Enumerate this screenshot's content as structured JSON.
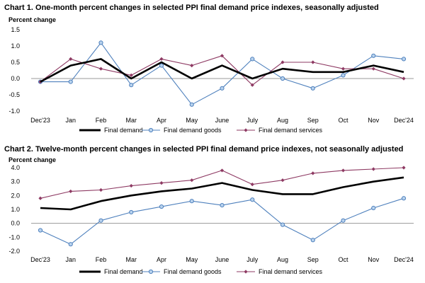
{
  "colors": {
    "final_demand": "#000000",
    "final_demand_goods": "#4f81bd",
    "final_demand_services": "#8e3a63",
    "goods_marker_fill": "#b9d3ee",
    "zero_line": "#999999"
  },
  "chart_data": [
    {
      "type": "line",
      "title": "Chart 1. One-month percent changes in selected PPI final demand price indexes, seasonally adjusted",
      "ylabel": "Percent change",
      "xlabel": "",
      "categories": [
        "Dec'23",
        "Jan",
        "Feb",
        "Mar",
        "Apr",
        "May",
        "June",
        "July",
        "Aug",
        "Sep",
        "Oct",
        "Nov",
        "Dec'24"
      ],
      "ylim": [
        -1.0,
        1.5
      ],
      "yticks": [
        "-1.0",
        "-0.5",
        "0.0",
        "0.5",
        "1.0",
        "1.5"
      ],
      "ytick_values": [
        -1.0,
        -0.5,
        0.0,
        0.5,
        1.0,
        1.5
      ],
      "grid": false,
      "legend_position": "bottom",
      "series": [
        {
          "name": "Final demand",
          "values": [
            -0.1,
            0.4,
            0.6,
            0.0,
            0.5,
            0.0,
            0.4,
            0.0,
            0.3,
            0.2,
            0.2,
            0.4,
            0.2
          ]
        },
        {
          "name": "Final demand goods",
          "values": [
            -0.1,
            -0.1,
            1.1,
            -0.2,
            0.4,
            -0.8,
            -0.3,
            0.6,
            0.0,
            -0.3,
            0.1,
            0.7,
            0.6
          ]
        },
        {
          "name": "Final demand services",
          "values": [
            -0.1,
            0.6,
            0.3,
            0.1,
            0.6,
            0.4,
            0.7,
            -0.2,
            0.5,
            0.5,
            0.3,
            0.3,
            0.0
          ]
        }
      ]
    },
    {
      "type": "line",
      "title": "Chart 2. Twelve-month percent changes in selected PPI final demand price indexes, not seasonally adjusted",
      "ylabel": "Percent change",
      "xlabel": "",
      "categories": [
        "Dec'23",
        "Jan",
        "Feb",
        "Mar",
        "Apr",
        "May",
        "June",
        "July",
        "Aug",
        "Sep",
        "Oct",
        "Nov",
        "Dec'24"
      ],
      "ylim": [
        -2.0,
        4.0
      ],
      "yticks": [
        "-2.0",
        "-1.0",
        "0.0",
        "1.0",
        "2.0",
        "3.0",
        "4.0"
      ],
      "ytick_values": [
        -2.0,
        -1.0,
        0.0,
        1.0,
        2.0,
        3.0,
        4.0
      ],
      "grid": false,
      "legend_position": "bottom",
      "series": [
        {
          "name": "Final demand",
          "values": [
            1.1,
            1.0,
            1.6,
            2.0,
            2.3,
            2.5,
            2.9,
            2.4,
            2.1,
            2.1,
            2.6,
            3.0,
            3.3
          ]
        },
        {
          "name": "Final demand goods",
          "values": [
            -0.5,
            -1.5,
            0.2,
            0.8,
            1.2,
            1.6,
            1.3,
            1.7,
            -0.1,
            -1.2,
            0.2,
            1.1,
            1.8
          ]
        },
        {
          "name": "Final demand services",
          "values": [
            1.8,
            2.3,
            2.4,
            2.7,
            2.9,
            3.1,
            3.8,
            2.8,
            3.1,
            3.6,
            3.8,
            3.9,
            4.0
          ]
        }
      ]
    }
  ]
}
